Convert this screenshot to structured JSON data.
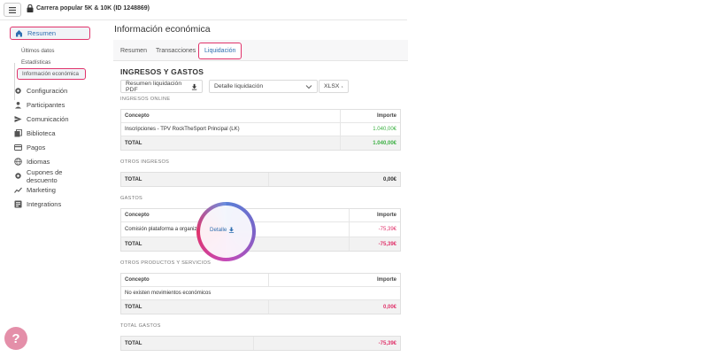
{
  "header": {
    "event_title": "Carrera popular 5K & 10K (ID 1248869)"
  },
  "sidebar": {
    "items": [
      {
        "label": "Resumen",
        "icon": "home-icon"
      },
      {
        "label": "Configuración",
        "icon": "gear-icon"
      },
      {
        "label": "Participantes",
        "icon": "person-icon"
      },
      {
        "label": "Comunicación",
        "icon": "send-icon"
      },
      {
        "label": "Biblioteca",
        "icon": "library-icon"
      },
      {
        "label": "Pagos",
        "icon": "card-icon"
      },
      {
        "label": "Idiomas",
        "icon": "globe-icon"
      },
      {
        "label": "Cupones de descuento",
        "icon": "gear-icon"
      },
      {
        "label": "Marketing",
        "icon": "trend-icon"
      },
      {
        "label": "Integrations",
        "icon": "integrations-icon"
      }
    ],
    "sub_items": [
      "Últimos datos",
      "Estadísticas",
      "Información económica"
    ]
  },
  "main": {
    "title": "Información económica",
    "tabs": [
      "Resumen",
      "Transacciones",
      "Liquidación"
    ],
    "section_title": "INGRESOS Y GASTOS",
    "controls": {
      "summary_pdf": "Resumen liquidación PDF",
      "detail_select": "Detalle liquidación",
      "xlsx": "XLSX"
    },
    "online_income": {
      "label": "INGRESOS ONLINE",
      "col_concept": "Concepto",
      "col_amount": "Importe",
      "rows": [
        {
          "concept": "Inscripciones - TPV RockTheSport Principal (LK)",
          "amount": "1.040,00€"
        }
      ],
      "total_label": "TOTAL",
      "total": "1.040,00€"
    },
    "other_income": {
      "label": "OTROS INGRESOS",
      "total_label": "TOTAL",
      "total": "0,00€"
    },
    "expenses": {
      "label": "GASTOS",
      "col_concept": "Concepto",
      "col_amount": "Importe",
      "rows": [
        {
          "concept": "Comisión plataforma a organizador",
          "detail": "Detalle",
          "amount": "-75,39€"
        }
      ],
      "total_label": "TOTAL",
      "total": "-75,39€"
    },
    "other_products": {
      "label": "OTROS PRODUCTOS Y SERVICIOS",
      "col_concept": "Concepto",
      "col_amount": "Importe",
      "empty": "No existen movimientos económicos",
      "total_label": "TOTAL",
      "total": "0,00€"
    },
    "total_expenses": {
      "label": "TOTAL GASTOS",
      "total_label": "TOTAL",
      "total": "-75,39€"
    }
  },
  "help": {
    "glyph": "?"
  }
}
